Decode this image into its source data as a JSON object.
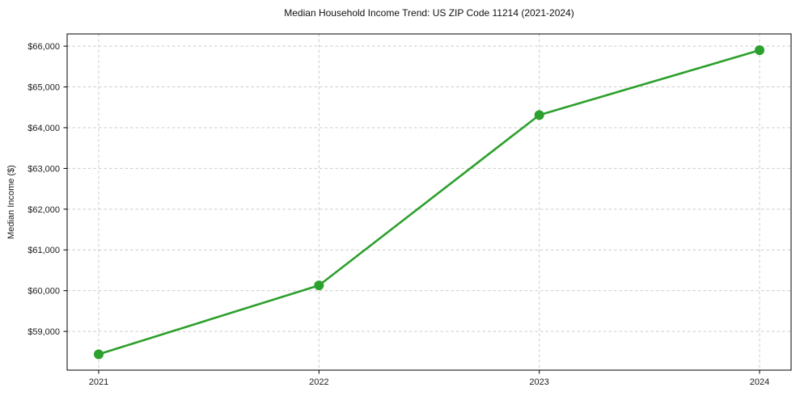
{
  "chart_data": {
    "type": "line",
    "title": "Median Household Income Trend: US ZIP Code 11214 (2021-2024)",
    "xlabel": "",
    "ylabel": "Median Income ($)",
    "x": [
      2021,
      2022,
      2023,
      2024
    ],
    "x_tick_labels": [
      "2021",
      "2022",
      "2023",
      "2024"
    ],
    "series": [
      {
        "name": "Median Household Income",
        "values": [
          58440,
          60130,
          64310,
          65900
        ]
      }
    ],
    "ylim": [
      58050,
      66300
    ],
    "y_ticks": [
      59000,
      60000,
      61000,
      62000,
      63000,
      64000,
      65000,
      66000
    ],
    "y_tick_labels": [
      "$59,000",
      "$60,000",
      "$61,000",
      "$62,000",
      "$63,000",
      "$64,000",
      "$65,000",
      "$66,000"
    ],
    "grid": "both",
    "grid_style": "dashed",
    "legend": "none",
    "colors": {
      "line": "#2ca02c",
      "marker": "#2ca02c",
      "grid": "#cccccc",
      "axis_border": "#000000",
      "text": "#1c1c1c",
      "background": "#ffffff"
    }
  }
}
